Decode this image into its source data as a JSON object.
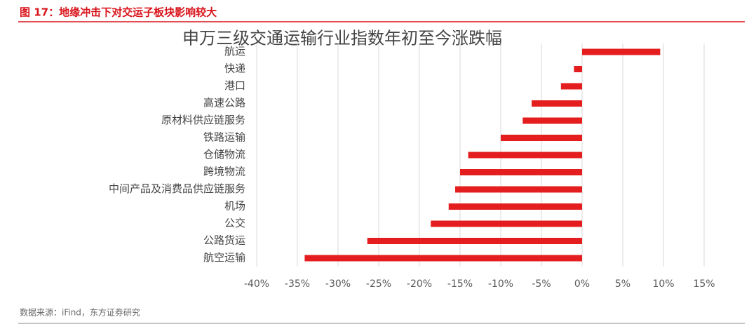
{
  "header": {
    "title": "图 17：地缘冲击下对交运子板块影响较大"
  },
  "source": "数据来源：iFind，东方证券研究",
  "chart_data": {
    "type": "hbar",
    "title": "申万三级交通运输行业指数年初至今涨跌幅",
    "categories": [
      "航运",
      "快递",
      "港口",
      "高速公路",
      "原材料供应链服务",
      "铁路运输",
      "仓储物流",
      "跨境物流",
      "中间产品及消费品供应链服务",
      "机场",
      "公交",
      "公路货运",
      "航空运输"
    ],
    "values": [
      9.6,
      -1.0,
      -2.6,
      -6.2,
      -7.3,
      -10.0,
      -14.0,
      -15.0,
      -15.6,
      -16.4,
      -18.6,
      -26.4,
      -34.1
    ],
    "color": "#e41e1e",
    "xlim": [
      -40,
      15
    ],
    "xticks": [
      {
        "value": -40,
        "label": "-40%"
      },
      {
        "value": -35,
        "label": "-35%"
      },
      {
        "value": -30,
        "label": "-30%"
      },
      {
        "value": -25,
        "label": "-25%"
      },
      {
        "value": -20,
        "label": "-20%"
      },
      {
        "value": -15,
        "label": "-15%"
      },
      {
        "value": -10,
        "label": "-10%"
      },
      {
        "value": -5,
        "label": "-5%"
      },
      {
        "value": 0,
        "label": "0%"
      },
      {
        "value": 5,
        "label": "5%"
      },
      {
        "value": 10,
        "label": "10%"
      },
      {
        "value": 15,
        "label": "15%"
      }
    ],
    "grid": true
  }
}
